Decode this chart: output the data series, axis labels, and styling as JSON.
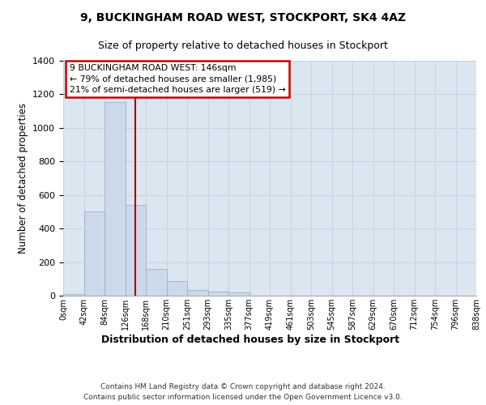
{
  "title1": "9, BUCKINGHAM ROAD WEST, STOCKPORT, SK4 4AZ",
  "title2": "Size of property relative to detached houses in Stockport",
  "xlabel": "Distribution of detached houses by size in Stockport",
  "ylabel": "Number of detached properties",
  "bin_labels": [
    "0sqm",
    "42sqm",
    "84sqm",
    "126sqm",
    "168sqm",
    "210sqm",
    "251sqm",
    "293sqm",
    "335sqm",
    "377sqm",
    "419sqm",
    "461sqm",
    "503sqm",
    "545sqm",
    "587sqm",
    "629sqm",
    "670sqm",
    "712sqm",
    "754sqm",
    "796sqm",
    "838sqm"
  ],
  "bar_heights": [
    8,
    500,
    1155,
    540,
    160,
    85,
    35,
    22,
    18,
    0,
    0,
    0,
    0,
    0,
    0,
    0,
    0,
    0,
    0,
    0
  ],
  "bar_color": "#ccd9ea",
  "bar_edge_color": "#9ab0c8",
  "vline_color": "#aa0000",
  "annotation_line1": "9 BUCKINGHAM ROAD WEST: 146sqm",
  "annotation_line2": "← 79% of detached houses are smaller (1,985)",
  "annotation_line3": "21% of semi-detached houses are larger (519) →",
  "annotation_box_facecolor": "#ffffff",
  "annotation_box_edgecolor": "#cc0000",
  "ylim": [
    0,
    1400
  ],
  "yticks": [
    0,
    200,
    400,
    600,
    800,
    1000,
    1200,
    1400
  ],
  "grid_color": "#c8d4e4",
  "bg_color": "#dce6f0",
  "footer1": "Contains HM Land Registry data © Crown copyright and database right 2024.",
  "footer2": "Contains public sector information licensed under the Open Government Licence v3.0."
}
